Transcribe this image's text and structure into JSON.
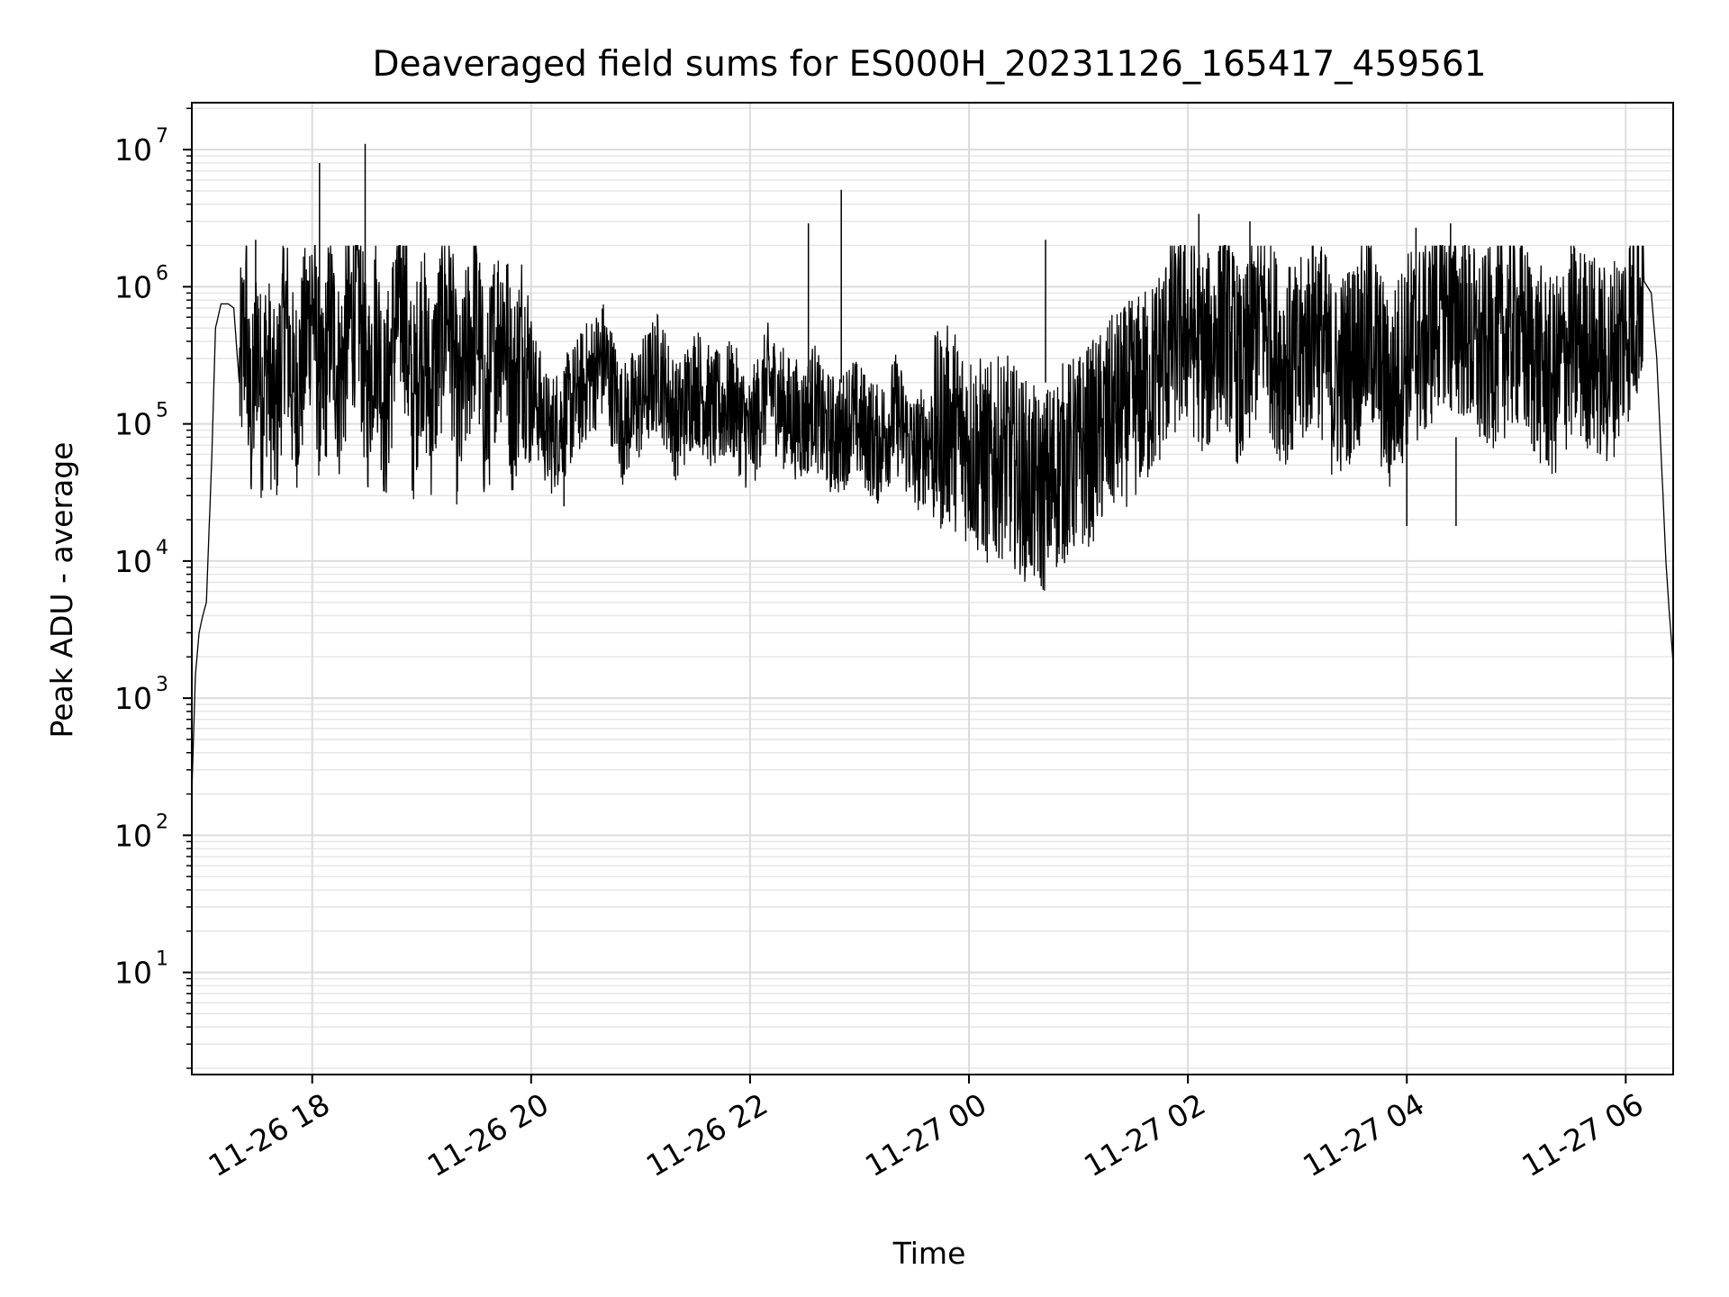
{
  "chart_data": {
    "type": "line",
    "title": "Deaveraged field sums for ES000H_20231126_165417_459561",
    "xlabel": "Time",
    "ylabel": "Peak ADU - average",
    "yscale": "log",
    "ylim": [
      1.8,
      22000000
    ],
    "xlim": [
      "2023-11-26 16:54",
      "2023-11-27 06:26"
    ],
    "grid": true,
    "line_color": "#000000",
    "x_ticks": [
      {
        "value": "2023-11-26 18:00",
        "label": "11-26 18"
      },
      {
        "value": "2023-11-26 20:00",
        "label": "11-26 20"
      },
      {
        "value": "2023-11-26 22:00",
        "label": "11-26 22"
      },
      {
        "value": "2023-11-27 00:00",
        "label": "11-27 00"
      },
      {
        "value": "2023-11-27 02:00",
        "label": "11-27 02"
      },
      {
        "value": "2023-11-27 04:00",
        "label": "11-27 04"
      },
      {
        "value": "2023-11-27 06:00",
        "label": "11-27 06"
      }
    ],
    "y_ticks": [
      {
        "value": 10,
        "base": "10",
        "exp": "1"
      },
      {
        "value": 100,
        "base": "10",
        "exp": "2"
      },
      {
        "value": 1000,
        "base": "10",
        "exp": "3"
      },
      {
        "value": 10000,
        "base": "10",
        "exp": "4"
      },
      {
        "value": 100000,
        "base": "10",
        "exp": "5"
      },
      {
        "value": 1000000,
        "base": "10",
        "exp": "6"
      },
      {
        "value": 10000000,
        "base": "10",
        "exp": "7"
      }
    ],
    "series": [
      {
        "x": [
          "2023-11-26 16:54",
          "2023-11-26 16:56",
          "2023-11-26 16:58",
          "2023-11-26 17:00",
          "2023-11-26 17:02",
          "2023-11-26 17:05",
          "2023-11-26 17:07",
          "2023-11-26 17:10",
          "2023-11-26 17:14",
          "2023-11-26 17:17",
          "2023-11-26 17:20",
          "2023-11-26 17:24",
          "2023-11-26 17:25",
          "2023-11-26 17:27",
          "2023-11-26 17:30",
          "2023-11-26 17:32",
          "2023-11-26 17:35",
          "2023-11-26 17:40",
          "2023-11-26 17:45",
          "2023-11-26 17:50",
          "2023-11-26 17:55",
          "2023-11-26 18:00",
          "2023-11-26 18:05",
          "2023-11-26 18:10",
          "2023-11-26 18:15",
          "2023-11-26 18:20",
          "2023-11-26 18:25",
          "2023-11-26 18:30",
          "2023-11-26 18:35",
          "2023-11-26 18:40",
          "2023-11-26 18:45",
          "2023-11-26 18:50",
          "2023-11-26 18:55",
          "2023-11-26 19:00",
          "2023-11-26 19:05",
          "2023-11-26 19:10",
          "2023-11-26 19:15",
          "2023-11-26 19:20",
          "2023-11-26 19:25",
          "2023-11-26 19:30",
          "2023-11-26 19:35",
          "2023-11-26 19:40",
          "2023-11-26 19:45",
          "2023-11-26 19:50",
          "2023-11-26 19:55",
          "2023-11-26 20:00",
          "2023-11-26 20:10",
          "2023-11-26 20:20",
          "2023-11-26 20:30",
          "2023-11-26 20:40",
          "2023-11-26 20:50",
          "2023-11-26 21:00",
          "2023-11-26 21:10",
          "2023-11-26 21:20",
          "2023-11-26 21:30",
          "2023-11-26 21:40",
          "2023-11-26 21:50",
          "2023-11-26 22:00",
          "2023-11-26 22:10",
          "2023-11-26 22:20",
          "2023-11-26 22:30",
          "2023-11-26 22:35",
          "2023-11-26 22:40",
          "2023-11-26 22:50",
          "2023-11-26 22:55",
          "2023-11-26 23:00",
          "2023-11-26 23:10",
          "2023-11-26 23:20",
          "2023-11-26 23:30",
          "2023-11-26 23:40",
          "2023-11-26 23:50",
          "2023-11-27 00:00",
          "2023-11-27 00:10",
          "2023-11-27 00:20",
          "2023-11-27 00:30",
          "2023-11-27 00:40",
          "2023-11-27 00:45",
          "2023-11-27 00:50",
          "2023-11-27 01:00",
          "2023-11-27 01:10",
          "2023-11-27 01:20",
          "2023-11-27 01:30",
          "2023-11-27 01:40",
          "2023-11-27 01:50",
          "2023-11-27 02:00",
          "2023-11-27 02:10",
          "2023-11-27 02:20",
          "2023-11-27 02:30",
          "2023-11-27 02:35",
          "2023-11-27 02:40",
          "2023-11-27 02:50",
          "2023-11-27 03:00",
          "2023-11-27 03:10",
          "2023-11-27 03:20",
          "2023-11-27 03:30",
          "2023-11-27 03:40",
          "2023-11-27 03:50",
          "2023-11-27 04:00",
          "2023-11-27 04:10",
          "2023-11-27 04:20",
          "2023-11-27 04:25",
          "2023-11-27 04:30",
          "2023-11-27 04:40",
          "2023-11-27 04:50",
          "2023-11-27 05:00",
          "2023-11-27 05:10",
          "2023-11-27 05:20",
          "2023-11-27 05:30",
          "2023-11-27 05:40",
          "2023-11-27 05:50",
          "2023-11-27 06:00",
          "2023-11-27 06:05",
          "2023-11-27 06:10",
          "2023-11-27 06:14",
          "2023-11-27 06:17",
          "2023-11-27 06:20",
          "2023-11-27 06:22",
          "2023-11-27 06:24",
          "2023-11-27 06:26"
        ],
        "y": [
          200,
          1500,
          3000,
          4000,
          5000,
          60000,
          500000,
          750000,
          750000,
          700000,
          200000,
          600000,
          150000,
          100000,
          500000,
          150000,
          300000,
          100000,
          700000,
          150000,
          300000,
          900000,
          120000,
          600000,
          200000,
          500000,
          900000,
          150000,
          600000,
          120000,
          500000,
          900000,
          120000,
          500000,
          150000,
          400000,
          800000,
          100000,
          300000,
          700000,
          100000,
          400000,
          600000,
          150000,
          400000,
          200000,
          80000,
          120000,
          200000,
          300000,
          100000,
          150000,
          250000,
          100000,
          200000,
          120000,
          150000,
          80000,
          200000,
          120000,
          100000,
          150000,
          90000,
          80000,
          120000,
          100000,
          70000,
          120000,
          60000,
          80000,
          100000,
          70000,
          50000,
          60000,
          40000,
          30000,
          40000,
          50000,
          60000,
          80000,
          120000,
          150000,
          200000,
          400000,
          500000,
          300000,
          600000,
          200000,
          400000,
          700000,
          300000,
          250000,
          600000,
          200000,
          300000,
          500000,
          150000,
          350000,
          400000,
          800000,
          500000,
          600000,
          300000,
          400000,
          500000,
          300000,
          200000,
          400000,
          350000,
          250000,
          500000,
          700000,
          1100000,
          900000,
          300000,
          40000,
          10000,
          4000,
          1800
        ]
      }
    ],
    "spikes": [
      {
        "x": "2023-11-26 17:29",
        "y": 2200000
      },
      {
        "x": "2023-11-26 18:04",
        "y": 8000000
      },
      {
        "x": "2023-11-26 18:29",
        "y": 11000000
      },
      {
        "x": "2023-11-26 22:32",
        "y": 2900000
      },
      {
        "x": "2023-11-26 22:50",
        "y": 5100000
      },
      {
        "x": "2023-11-27 00:42",
        "y": 2200000
      },
      {
        "x": "2023-11-27 02:06",
        "y": 3400000
      },
      {
        "x": "2023-11-27 02:34",
        "y": 3000000
      },
      {
        "x": "2023-11-27 04:05",
        "y": 2700000
      },
      {
        "x": "2023-11-27 04:24",
        "y": 2900000
      }
    ],
    "dips": [
      {
        "x": "2023-11-26 20:18",
        "y": 25000
      },
      {
        "x": "2023-11-27 00:30",
        "y": 13000
      },
      {
        "x": "2023-11-27 00:45",
        "y": 13000
      },
      {
        "x": "2023-11-27 04:00",
        "y": 18000
      },
      {
        "x": "2023-11-27 04:27",
        "y": 18000
      }
    ]
  }
}
